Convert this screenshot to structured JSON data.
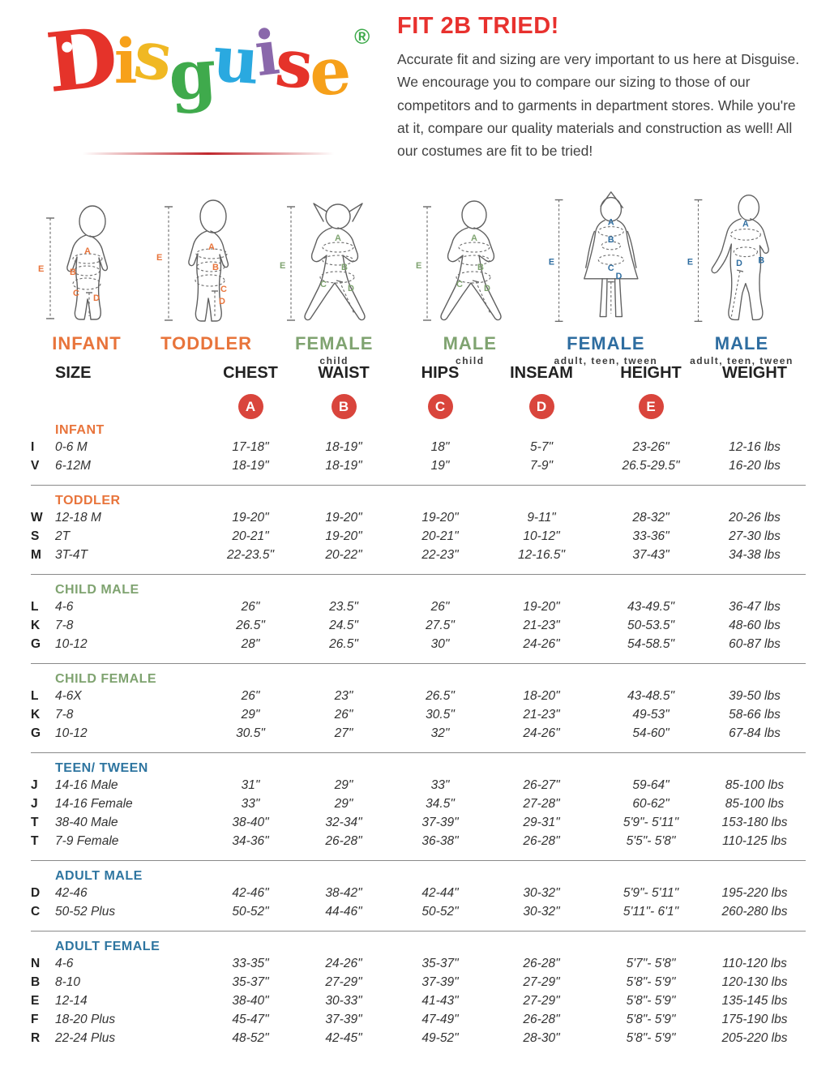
{
  "logo": {
    "letters": [
      {
        "char": "D",
        "color": "#e5332a"
      },
      {
        "char": "i",
        "color": "#f7a11a"
      },
      {
        "char": "s",
        "color": "#f0b823"
      },
      {
        "char": "g",
        "color": "#3faa4c"
      },
      {
        "char": "u",
        "color": "#2aa9e0"
      },
      {
        "char": "i",
        "color": "#8a68ab"
      },
      {
        "char": "s",
        "color": "#e5332a"
      },
      {
        "char": "e",
        "color": "#f6a01a"
      }
    ],
    "registered": "®",
    "registered_color": "#3faa4c"
  },
  "intro": {
    "title": "FIT 2B TRIED!",
    "body": "Accurate fit and sizing are very important to us here at Disguise. We encourage you to compare our sizing to those of our competitors and to garments in department stores. While you're at it, compare our quality materials and construction as well! All our costumes are fit to be tried!"
  },
  "measure_letters": [
    "A",
    "B",
    "C",
    "D",
    "E"
  ],
  "figures": [
    {
      "label": "INFANT",
      "sublabel": "",
      "color": "#e8743b"
    },
    {
      "label": "TODDLER",
      "sublabel": "",
      "color": "#e8743b"
    },
    {
      "label": "FEMALE",
      "sublabel": "child",
      "color": "#7fa370"
    },
    {
      "label": "MALE",
      "sublabel": "child",
      "color": "#7fa370"
    },
    {
      "label": "FEMALE",
      "sublabel": "adult, teen, tween",
      "color": "#2e6da0"
    },
    {
      "label": "MALE",
      "sublabel": "adult, teen, tween",
      "color": "#2e6da0"
    }
  ],
  "table": {
    "headers": [
      "SIZE",
      "CHEST",
      "WAIST",
      "HIPS",
      "INSEAM",
      "HEIGHT",
      "WEIGHT"
    ],
    "badges": [
      "A",
      "B",
      "C",
      "D",
      "E"
    ],
    "badge_color": "#d9453c",
    "sections": [
      {
        "title": "INFANT",
        "color": "#e8743b",
        "rows": [
          {
            "code": "I",
            "size": "0-6 M",
            "chest": "17-18\"",
            "waist": "18-19\"",
            "hips": "18\"",
            "inseam": "5-7\"",
            "height": "23-26\"",
            "weight": "12-16 lbs"
          },
          {
            "code": "V",
            "size": "6-12M",
            "chest": "18-19\"",
            "waist": "18-19\"",
            "hips": "19\"",
            "inseam": "7-9\"",
            "height": "26.5-29.5\"",
            "weight": "16-20 lbs"
          }
        ]
      },
      {
        "title": "TODDLER",
        "color": "#e8743b",
        "rows": [
          {
            "code": "W",
            "size": "12-18 M",
            "chest": "19-20\"",
            "waist": "19-20\"",
            "hips": "19-20\"",
            "inseam": "9-11\"",
            "height": "28-32\"",
            "weight": "20-26 lbs"
          },
          {
            "code": "S",
            "size": "2T",
            "chest": "20-21\"",
            "waist": "19-20\"",
            "hips": "20-21\"",
            "inseam": "10-12\"",
            "height": "33-36\"",
            "weight": "27-30 lbs"
          },
          {
            "code": "M",
            "size": "3T-4T",
            "chest": "22-23.5\"",
            "waist": "20-22\"",
            "hips": "22-23\"",
            "inseam": "12-16.5\"",
            "height": "37-43\"",
            "weight": "34-38 lbs"
          }
        ]
      },
      {
        "title": "CHILD MALE",
        "color": "#7fa370",
        "rows": [
          {
            "code": "L",
            "size": "4-6",
            "chest": "26\"",
            "waist": "23.5\"",
            "hips": "26\"",
            "inseam": "19-20\"",
            "height": "43-49.5\"",
            "weight": "36-47 lbs"
          },
          {
            "code": "K",
            "size": "7-8",
            "chest": "26.5\"",
            "waist": "24.5\"",
            "hips": "27.5\"",
            "inseam": "21-23\"",
            "height": "50-53.5\"",
            "weight": "48-60 lbs"
          },
          {
            "code": "G",
            "size": "10-12",
            "chest": "28\"",
            "waist": "26.5\"",
            "hips": "30\"",
            "inseam": "24-26\"",
            "height": "54-58.5\"",
            "weight": "60-87 lbs"
          }
        ]
      },
      {
        "title": "CHILD FEMALE",
        "color": "#7fa370",
        "rows": [
          {
            "code": "L",
            "size": "4-6X",
            "chest": "26\"",
            "waist": "23\"",
            "hips": "26.5\"",
            "inseam": "18-20\"",
            "height": "43-48.5\"",
            "weight": "39-50 lbs"
          },
          {
            "code": "K",
            "size": "7-8",
            "chest": "29\"",
            "waist": "26\"",
            "hips": "30.5\"",
            "inseam": "21-23\"",
            "height": "49-53\"",
            "weight": "58-66 lbs"
          },
          {
            "code": "G",
            "size": "10-12",
            "chest": "30.5\"",
            "waist": "27\"",
            "hips": "32\"",
            "inseam": "24-26\"",
            "height": "54-60\"",
            "weight": "67-84 lbs"
          }
        ]
      },
      {
        "title": "TEEN/ TWEEN",
        "color": "#2e75a0",
        "rows": [
          {
            "code": "J",
            "size": "14-16 Male",
            "chest": "31\"",
            "waist": "29\"",
            "hips": "33\"",
            "inseam": "26-27\"",
            "height": "59-64\"",
            "weight": "85-100 lbs"
          },
          {
            "code": "J",
            "size": "14-16 Female",
            "chest": "33\"",
            "waist": "29\"",
            "hips": "34.5\"",
            "inseam": "27-28\"",
            "height": "60-62\"",
            "weight": "85-100 lbs"
          },
          {
            "code": "T",
            "size": "38-40 Male",
            "chest": "38-40\"",
            "waist": "32-34\"",
            "hips": "37-39\"",
            "inseam": "29-31\"",
            "height": "5'9\"- 5'11\"",
            "weight": "153-180 lbs"
          },
          {
            "code": "T",
            "size": "7-9 Female",
            "chest": "34-36\"",
            "waist": "26-28\"",
            "hips": "36-38\"",
            "inseam": "26-28\"",
            "height": "5'5\"- 5'8\"",
            "weight": "110-125 lbs"
          }
        ]
      },
      {
        "title": "ADULT MALE",
        "color": "#2e75a0",
        "rows": [
          {
            "code": "D",
            "size": "42-46",
            "chest": "42-46\"",
            "waist": "38-42\"",
            "hips": "42-44\"",
            "inseam": "30-32\"",
            "height": "5'9\"- 5'11\"",
            "weight": "195-220 lbs"
          },
          {
            "code": "C",
            "size": "50-52 Plus",
            "chest": "50-52\"",
            "waist": "44-46\"",
            "hips": "50-52\"",
            "inseam": "30-32\"",
            "height": "5'11\"- 6'1\"",
            "weight": "260-280 lbs"
          }
        ]
      },
      {
        "title": "ADULT FEMALE",
        "color": "#2e75a0",
        "rows": [
          {
            "code": "N",
            "size": "4-6",
            "chest": "33-35\"",
            "waist": "24-26\"",
            "hips": "35-37\"",
            "inseam": "26-28\"",
            "height": "5'7\"- 5'8\"",
            "weight": "110-120 lbs"
          },
          {
            "code": "B",
            "size": "8-10",
            "chest": "35-37\"",
            "waist": "27-29\"",
            "hips": "37-39\"",
            "inseam": "27-29\"",
            "height": "5'8\"- 5'9\"",
            "weight": "120-130 lbs"
          },
          {
            "code": "E",
            "size": "12-14",
            "chest": "38-40\"",
            "waist": "30-33\"",
            "hips": "41-43\"",
            "inseam": "27-29\"",
            "height": "5'8\"- 5'9\"",
            "weight": "135-145 lbs"
          },
          {
            "code": "F",
            "size": "18-20 Plus",
            "chest": "45-47\"",
            "waist": "37-39\"",
            "hips": "47-49\"",
            "inseam": "26-28\"",
            "height": "5'8\"- 5'9\"",
            "weight": "175-190 lbs"
          },
          {
            "code": "R",
            "size": "22-24 Plus",
            "chest": "48-52\"",
            "waist": "42-45\"",
            "hips": "49-52\"",
            "inseam": "28-30\"",
            "height": "5'8\"- 5'9\"",
            "weight": "205-220 lbs"
          }
        ]
      }
    ]
  }
}
